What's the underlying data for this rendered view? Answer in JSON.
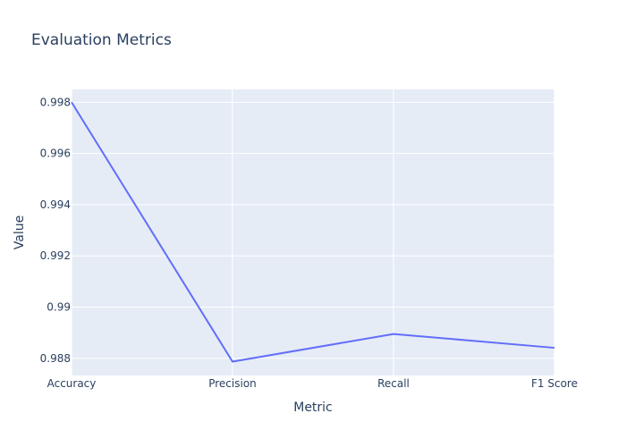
{
  "chart_data": {
    "type": "line",
    "title": "Evaluation Metrics",
    "xlabel": "Metric",
    "ylabel": "Value",
    "categories": [
      "Accuracy",
      "Precision",
      "Recall",
      "F1 Score"
    ],
    "series": [
      {
        "values": [
          0.998,
          0.98787,
          0.98895,
          0.98841
        ]
      }
    ],
    "ylim": [
      0.98733,
      0.9985
    ],
    "yticks": [
      "0.988",
      "0.99",
      "0.992",
      "0.994",
      "0.996",
      "0.998"
    ],
    "grid": true,
    "colors": {
      "line": "#636efa",
      "plot_bg": "#e5ecf6",
      "text": "#2a3f5f"
    }
  }
}
